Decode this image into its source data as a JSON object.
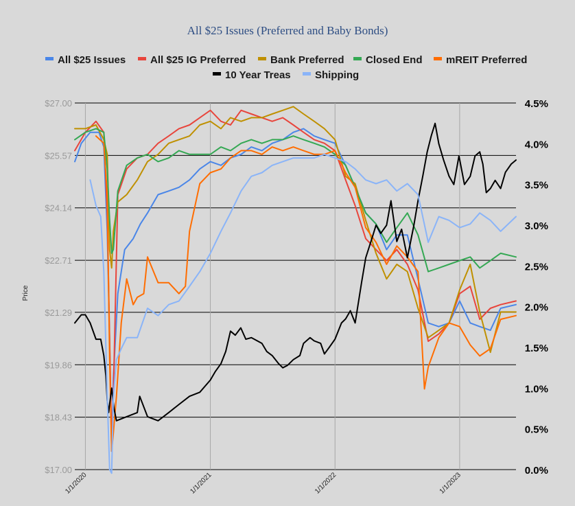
{
  "chart_data": {
    "type": "line",
    "title": "All $25 Issues (Preferred and Baby Bonds)",
    "ylabel": "Price",
    "y_left_ticks": [
      "$27.00",
      "$25.57",
      "$24.14",
      "$22.71",
      "$21.29",
      "$19.86",
      "$18.43",
      "$17.00"
    ],
    "y_right_ticks": [
      "4.5%",
      "4.0%",
      "3.5%",
      "3.0%",
      "2.5%",
      "2.0%",
      "1.5%",
      "1.0%",
      "0.5%",
      "0.0%"
    ],
    "x_ticks": [
      "1/1/2020",
      "1/1/2021",
      "1/1/2022",
      "1/1/2023"
    ],
    "ylim_left": [
      17.0,
      27.0
    ],
    "ylim_right": [
      0.0,
      4.5
    ],
    "xlim": [
      "2019-12-01",
      "2023-06-15"
    ],
    "legend_position": "top",
    "grid": "horizontal",
    "series": [
      {
        "name": "All $25 Issues",
        "axis": "left",
        "color": "#4a86e8",
        "x": [
          "2019-12-01",
          "2019-12-20",
          "2020-01-15",
          "2020-02-10",
          "2020-02-24",
          "2020-03-05",
          "2020-03-12",
          "2020-03-18",
          "2020-03-23",
          "2020-04-05",
          "2020-04-25",
          "2020-05-20",
          "2020-06-10",
          "2020-07-01",
          "2020-08-01",
          "2020-09-01",
          "2020-10-01",
          "2020-11-01",
          "2020-12-01",
          "2021-01-01",
          "2021-02-01",
          "2021-03-01",
          "2021-04-01",
          "2021-05-01",
          "2021-06-01",
          "2021-07-01",
          "2021-08-01",
          "2021-09-01",
          "2021-10-01",
          "2021-11-01",
          "2021-12-01",
          "2022-01-01",
          "2022-02-01",
          "2022-03-01",
          "2022-04-01",
          "2022-05-01",
          "2022-06-01",
          "2022-07-01",
          "2022-08-01",
          "2022-09-01",
          "2022-10-01",
          "2022-11-01",
          "2022-12-01",
          "2023-01-01",
          "2023-02-01",
          "2023-03-01",
          "2023-04-01",
          "2023-05-01",
          "2023-06-15"
        ],
        "values": [
          25.4,
          25.9,
          26.2,
          26.2,
          25.8,
          23.5,
          20.5,
          17.5,
          19.5,
          21.8,
          23.0,
          23.3,
          23.7,
          24.0,
          24.5,
          24.6,
          24.7,
          24.9,
          25.2,
          25.4,
          25.3,
          25.5,
          25.6,
          25.8,
          25.7,
          25.9,
          26.0,
          26.2,
          26.3,
          26.1,
          26.0,
          25.9,
          25.3,
          24.7,
          24.0,
          23.7,
          23.0,
          23.4,
          23.4,
          22.2,
          21.0,
          20.9,
          21.0,
          21.6,
          21.0,
          20.9,
          20.8,
          21.4,
          21.5
        ]
      },
      {
        "name": "All $25 IG Preferred",
        "axis": "left",
        "color": "#e8453c",
        "x": [
          "2019-12-01",
          "2020-01-01",
          "2020-02-01",
          "2020-02-24",
          "2020-03-05",
          "2020-03-12",
          "2020-03-18",
          "2020-03-23",
          "2020-04-05",
          "2020-05-01",
          "2020-06-01",
          "2020-07-01",
          "2020-08-01",
          "2020-09-01",
          "2020-10-01",
          "2020-11-01",
          "2020-12-01",
          "2021-01-01",
          "2021-02-01",
          "2021-03-01",
          "2021-04-01",
          "2021-05-01",
          "2021-06-01",
          "2021-07-01",
          "2021-08-01",
          "2021-09-01",
          "2021-10-01",
          "2021-11-01",
          "2021-12-01",
          "2022-01-01",
          "2022-02-01",
          "2022-03-01",
          "2022-04-01",
          "2022-05-01",
          "2022-06-01",
          "2022-07-01",
          "2022-08-01",
          "2022-09-01",
          "2022-10-01",
          "2022-11-01",
          "2022-12-01",
          "2023-01-01",
          "2023-02-01",
          "2023-03-01",
          "2023-04-01",
          "2023-05-01",
          "2023-06-15"
        ],
        "values": [
          25.7,
          26.2,
          26.5,
          26.2,
          24.0,
          20.5,
          17.8,
          19.0,
          24.5,
          25.2,
          25.5,
          25.6,
          25.9,
          26.1,
          26.3,
          26.4,
          26.6,
          26.8,
          26.5,
          26.4,
          26.8,
          26.7,
          26.6,
          26.5,
          26.6,
          26.4,
          26.2,
          26.0,
          25.9,
          25.7,
          24.9,
          24.2,
          23.3,
          23.0,
          22.7,
          23.0,
          22.6,
          21.9,
          20.5,
          20.7,
          21.0,
          21.8,
          22.0,
          21.1,
          21.4,
          21.5,
          21.6
        ]
      },
      {
        "name": "Bank Preferred",
        "axis": "left",
        "color": "#bf9000",
        "x": [
          "2019-12-01",
          "2020-01-01",
          "2020-02-01",
          "2020-02-24",
          "2020-03-05",
          "2020-03-12",
          "2020-03-18",
          "2020-03-23",
          "2020-04-05",
          "2020-05-01",
          "2020-06-01",
          "2020-07-01",
          "2020-08-01",
          "2020-09-01",
          "2020-10-01",
          "2020-11-01",
          "2020-12-01",
          "2021-01-01",
          "2021-02-01",
          "2021-03-01",
          "2021-04-01",
          "2021-05-01",
          "2021-06-01",
          "2021-07-01",
          "2021-08-01",
          "2021-09-01",
          "2021-10-01",
          "2021-11-01",
          "2021-12-01",
          "2022-01-01",
          "2022-02-01",
          "2022-03-01",
          "2022-04-01",
          "2022-05-01",
          "2022-06-01",
          "2022-07-01",
          "2022-08-01",
          "2022-09-01",
          "2022-10-01",
          "2022-11-01",
          "2022-12-01",
          "2023-01-01",
          "2023-02-01",
          "2023-03-01",
          "2023-04-01",
          "2023-05-01",
          "2023-06-15"
        ],
        "values": [
          26.3,
          26.3,
          26.4,
          26.0,
          25.6,
          23.0,
          22.5,
          23.5,
          24.3,
          24.5,
          24.9,
          25.4,
          25.6,
          25.9,
          26.0,
          26.1,
          26.4,
          26.5,
          26.3,
          26.6,
          26.5,
          26.6,
          26.6,
          26.7,
          26.8,
          26.9,
          26.7,
          26.5,
          26.3,
          26.0,
          25.0,
          24.8,
          23.8,
          22.9,
          22.2,
          22.6,
          22.4,
          21.4,
          20.6,
          20.8,
          21.0,
          21.9,
          22.6,
          21.3,
          20.2,
          21.3,
          21.3
        ]
      },
      {
        "name": "Closed End",
        "axis": "left",
        "color": "#34a853",
        "x": [
          "2019-12-01",
          "2020-01-01",
          "2020-02-01",
          "2020-02-24",
          "2020-03-05",
          "2020-03-12",
          "2020-03-18",
          "2020-03-23",
          "2020-04-05",
          "2020-05-01",
          "2020-06-01",
          "2020-07-01",
          "2020-08-01",
          "2020-09-01",
          "2020-10-01",
          "2020-11-01",
          "2020-12-01",
          "2021-01-01",
          "2021-02-01",
          "2021-03-01",
          "2021-04-01",
          "2021-05-01",
          "2021-06-01",
          "2021-07-01",
          "2021-08-01",
          "2021-09-01",
          "2021-10-01",
          "2021-11-01",
          "2021-12-01",
          "2022-01-01",
          "2022-02-01",
          "2022-03-01",
          "2022-04-01",
          "2022-05-01",
          "2022-06-01",
          "2022-07-01",
          "2022-08-01",
          "2022-09-01",
          "2022-10-01",
          "2022-11-01",
          "2022-12-01",
          "2023-01-01",
          "2023-02-01",
          "2023-03-01",
          "2023-04-01",
          "2023-05-01",
          "2023-06-15"
        ],
        "values": [
          26.0,
          26.2,
          26.3,
          26.2,
          25.2,
          23.8,
          22.9,
          23.0,
          24.6,
          25.3,
          25.5,
          25.6,
          25.4,
          25.5,
          25.7,
          25.6,
          25.6,
          25.6,
          25.8,
          25.7,
          25.9,
          26.0,
          25.9,
          26.0,
          26.0,
          26.1,
          26.0,
          25.9,
          25.8,
          25.6,
          25.3,
          24.7,
          24.0,
          23.7,
          23.2,
          23.6,
          24.0,
          23.4,
          22.4,
          22.5,
          22.6,
          22.7,
          22.8,
          22.5,
          22.7,
          22.9,
          22.8
        ]
      },
      {
        "name": "mREIT Preferred",
        "axis": "left",
        "color": "#ff6d01",
        "x": [
          "2020-02-01",
          "2020-02-24",
          "2020-03-05",
          "2020-03-12",
          "2020-03-18",
          "2020-03-23",
          "2020-04-01",
          "2020-04-15",
          "2020-05-01",
          "2020-05-20",
          "2020-06-01",
          "2020-06-20",
          "2020-07-01",
          "2020-08-01",
          "2020-09-01",
          "2020-10-01",
          "2020-10-20",
          "2020-11-01",
          "2020-12-01",
          "2021-01-01",
          "2021-02-01",
          "2021-03-01",
          "2021-04-01",
          "2021-05-01",
          "2021-06-01",
          "2021-07-01",
          "2021-08-01",
          "2021-09-01",
          "2021-10-01",
          "2021-11-01",
          "2021-12-01",
          "2022-01-01",
          "2022-02-01",
          "2022-03-01",
          "2022-04-01",
          "2022-05-01",
          "2022-06-01",
          "2022-07-01",
          "2022-08-01",
          "2022-09-01",
          "2022-09-20",
          "2022-10-01",
          "2022-11-01",
          "2022-12-01",
          "2023-01-01",
          "2023-02-01",
          "2023-03-01",
          "2023-04-01",
          "2023-05-01",
          "2023-06-15"
        ],
        "values": [
          26.1,
          25.9,
          24.5,
          20.0,
          17.5,
          18.0,
          19.0,
          21.0,
          22.2,
          21.5,
          21.7,
          21.8,
          22.8,
          22.1,
          22.1,
          21.8,
          22.0,
          23.5,
          24.8,
          25.1,
          25.2,
          25.5,
          25.7,
          25.7,
          25.6,
          25.8,
          25.7,
          25.8,
          25.7,
          25.6,
          25.6,
          25.7,
          25.1,
          24.7,
          23.6,
          23.2,
          22.6,
          23.1,
          22.8,
          22.4,
          19.2,
          19.8,
          20.6,
          21.0,
          20.9,
          20.4,
          20.1,
          20.3,
          21.1,
          21.2
        ]
      },
      {
        "name": "10 Year Treas",
        "axis": "right",
        "color": "#000000",
        "x": [
          "2019-12-01",
          "2019-12-20",
          "2020-01-01",
          "2020-01-15",
          "2020-02-01",
          "2020-02-15",
          "2020-02-24",
          "2020-03-01",
          "2020-03-05",
          "2020-03-09",
          "2020-03-18",
          "2020-03-25",
          "2020-04-01",
          "2020-05-01",
          "2020-06-01",
          "2020-06-08",
          "2020-07-01",
          "2020-08-01",
          "2020-09-01",
          "2020-10-01",
          "2020-11-01",
          "2020-12-01",
          "2021-01-01",
          "2021-01-15",
          "2021-02-01",
          "2021-02-15",
          "2021-03-01",
          "2021-03-15",
          "2021-03-31",
          "2021-04-15",
          "2021-05-01",
          "2021-06-01",
          "2021-06-15",
          "2021-07-01",
          "2021-07-20",
          "2021-08-01",
          "2021-08-15",
          "2021-09-01",
          "2021-09-20",
          "2021-10-01",
          "2021-10-20",
          "2021-11-01",
          "2021-11-20",
          "2021-12-01",
          "2021-12-15",
          "2022-01-01",
          "2022-01-20",
          "2022-02-01",
          "2022-02-15",
          "2022-03-01",
          "2022-03-20",
          "2022-04-01",
          "2022-04-20",
          "2022-05-01",
          "2022-05-15",
          "2022-06-01",
          "2022-06-14",
          "2022-07-01",
          "2022-07-15",
          "2022-08-01",
          "2022-08-20",
          "2022-09-01",
          "2022-09-15",
          "2022-09-28",
          "2022-10-10",
          "2022-10-21",
          "2022-11-01",
          "2022-11-15",
          "2022-12-01",
          "2022-12-15",
          "2022-12-30",
          "2023-01-15",
          "2023-02-01",
          "2023-02-15",
          "2023-03-01",
          "2023-03-10",
          "2023-03-20",
          "2023-04-01",
          "2023-04-15",
          "2023-05-01",
          "2023-05-15",
          "2023-06-01",
          "2023-06-15"
        ],
        "values": [
          1.8,
          1.9,
          1.9,
          1.8,
          1.6,
          1.6,
          1.4,
          1.15,
          0.85,
          0.7,
          1.0,
          0.75,
          0.6,
          0.65,
          0.7,
          0.9,
          0.65,
          0.6,
          0.7,
          0.8,
          0.9,
          0.95,
          1.1,
          1.2,
          1.3,
          1.45,
          1.7,
          1.65,
          1.74,
          1.6,
          1.62,
          1.55,
          1.45,
          1.4,
          1.3,
          1.25,
          1.28,
          1.35,
          1.4,
          1.55,
          1.62,
          1.58,
          1.55,
          1.42,
          1.5,
          1.6,
          1.8,
          1.85,
          1.95,
          1.8,
          2.3,
          2.6,
          2.85,
          3.0,
          2.9,
          3.0,
          3.3,
          2.8,
          2.95,
          2.6,
          3.0,
          3.3,
          3.6,
          3.9,
          4.1,
          4.25,
          4.0,
          3.8,
          3.6,
          3.5,
          3.85,
          3.5,
          3.6,
          3.85,
          3.9,
          3.75,
          3.4,
          3.45,
          3.55,
          3.45,
          3.65,
          3.75,
          3.8
        ]
      },
      {
        "name": "Shipping",
        "axis": "left",
        "color": "#8ab4f8",
        "x": [
          "2020-01-15",
          "2020-02-01",
          "2020-02-15",
          "2020-02-24",
          "2020-03-05",
          "2020-03-12",
          "2020-03-18",
          "2020-03-23",
          "2020-04-01",
          "2020-04-15",
          "2020-05-01",
          "2020-06-01",
          "2020-07-01",
          "2020-08-01",
          "2020-09-01",
          "2020-10-01",
          "2020-11-01",
          "2020-12-01",
          "2021-01-01",
          "2021-02-01",
          "2021-03-01",
          "2021-04-01",
          "2021-05-01",
          "2021-06-01",
          "2021-07-01",
          "2021-08-01",
          "2021-09-01",
          "2021-10-01",
          "2021-11-01",
          "2021-12-01",
          "2022-01-01",
          "2022-02-01",
          "2022-03-01",
          "2022-04-01",
          "2022-05-01",
          "2022-06-01",
          "2022-07-01",
          "2022-08-01",
          "2022-09-01",
          "2022-10-01",
          "2022-11-01",
          "2022-12-01",
          "2023-01-01",
          "2023-02-01",
          "2023-03-01",
          "2023-04-01",
          "2023-05-01",
          "2023-06-15"
        ],
        "values": [
          24.9,
          24.2,
          23.9,
          22.4,
          19.0,
          17.0,
          16.9,
          19.0,
          20.0,
          20.3,
          20.6,
          20.6,
          21.4,
          21.2,
          21.5,
          21.6,
          22.0,
          22.4,
          22.9,
          23.5,
          24.0,
          24.6,
          25.0,
          25.1,
          25.3,
          25.4,
          25.5,
          25.5,
          25.5,
          25.6,
          25.5,
          25.4,
          25.2,
          24.9,
          24.8,
          24.9,
          24.6,
          24.8,
          24.5,
          23.2,
          23.9,
          23.8,
          23.6,
          23.7,
          24.0,
          23.8,
          23.5,
          23.9
        ]
      }
    ]
  }
}
